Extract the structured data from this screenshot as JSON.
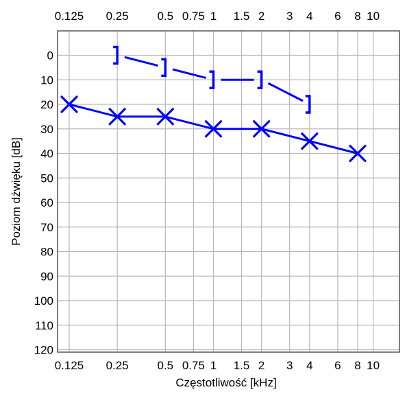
{
  "chart_data": {
    "type": "line",
    "title": "",
    "xlabel": "Częstotliwość [kHz]",
    "ylabel": "Poziom dźwięku [dB]",
    "x_scale": "log",
    "x_ticks": [
      0.125,
      0.25,
      0.5,
      0.75,
      1,
      1.5,
      2,
      3,
      4,
      6,
      8,
      10
    ],
    "x_tick_labels": [
      "0.125",
      "0.25",
      "0.5",
      "0.75",
      "1",
      "1.5",
      "2",
      "3",
      "4",
      "6",
      "8",
      "10"
    ],
    "x_ticks_top": true,
    "y_ticks": [
      0,
      10,
      20,
      30,
      40,
      50,
      60,
      70,
      80,
      90,
      100,
      110,
      120
    ],
    "y_tick_labels": [
      "0",
      "10",
      "20",
      "30",
      "40",
      "50",
      "60",
      "70",
      "80",
      "90",
      "100",
      "110",
      "120"
    ],
    "ylim": [
      120,
      -10
    ],
    "y_inverted": true,
    "grid": true,
    "series": [
      {
        "marker": "x",
        "color": "#0000ff",
        "x": [
          0.125,
          0.25,
          0.5,
          1,
          2,
          4,
          8
        ],
        "y": [
          20,
          25,
          25,
          30,
          30,
          35,
          40
        ]
      },
      {
        "marker": "bracket-right",
        "color": "#0000ff",
        "x": [
          0.25,
          0.5,
          1,
          2,
          4
        ],
        "y": [
          0,
          5,
          10,
          10,
          20
        ]
      }
    ]
  }
}
